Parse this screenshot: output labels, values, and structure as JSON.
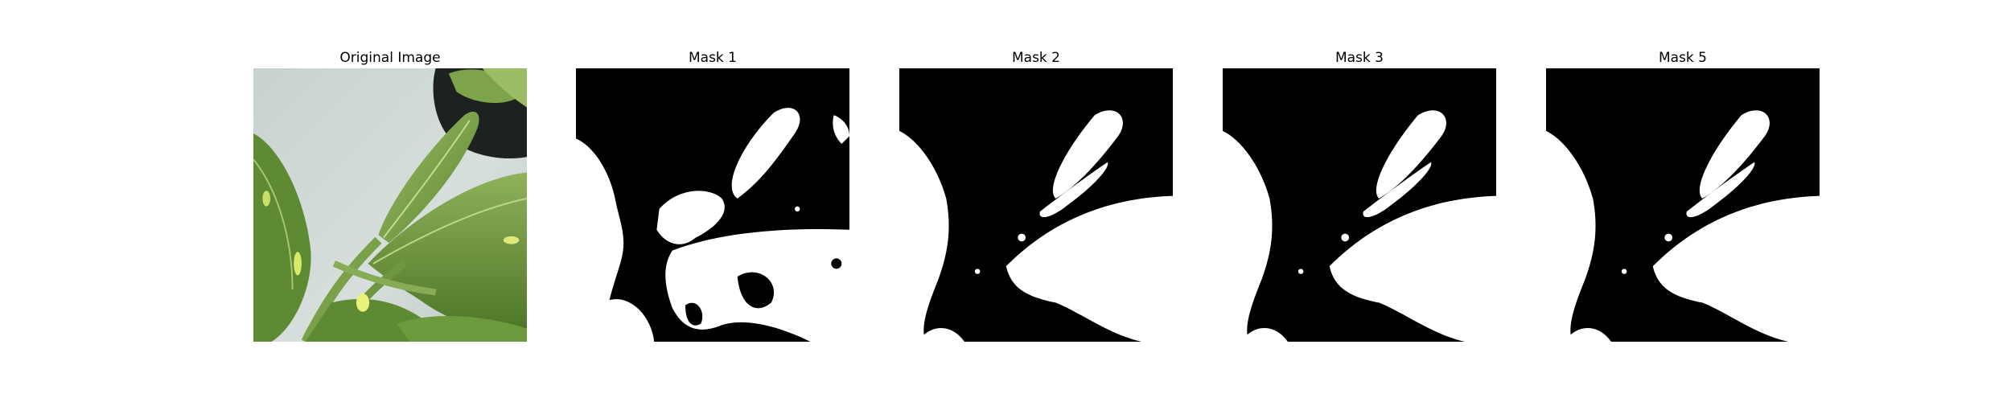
{
  "figure": {
    "panels": [
      {
        "title": "Original Image",
        "kind": "photo"
      },
      {
        "title": "Mask 1",
        "kind": "mask",
        "variant": "noisy"
      },
      {
        "title": "Mask 2",
        "kind": "mask",
        "variant": "clean"
      },
      {
        "title": "Mask 3",
        "kind": "mask",
        "variant": "clean"
      },
      {
        "title": "Mask 5",
        "kind": "mask",
        "variant": "clean"
      }
    ],
    "colors": {
      "background": "#ffffff",
      "mask_background": "#000000",
      "mask_foreground": "#ffffff",
      "photo_wall": "#cdd7d4",
      "leaf_dark": "#4f7a2c",
      "leaf_mid": "#7ea34a",
      "leaf_light": "#b3cd7c",
      "pot_dark": "#1d2220"
    }
  }
}
